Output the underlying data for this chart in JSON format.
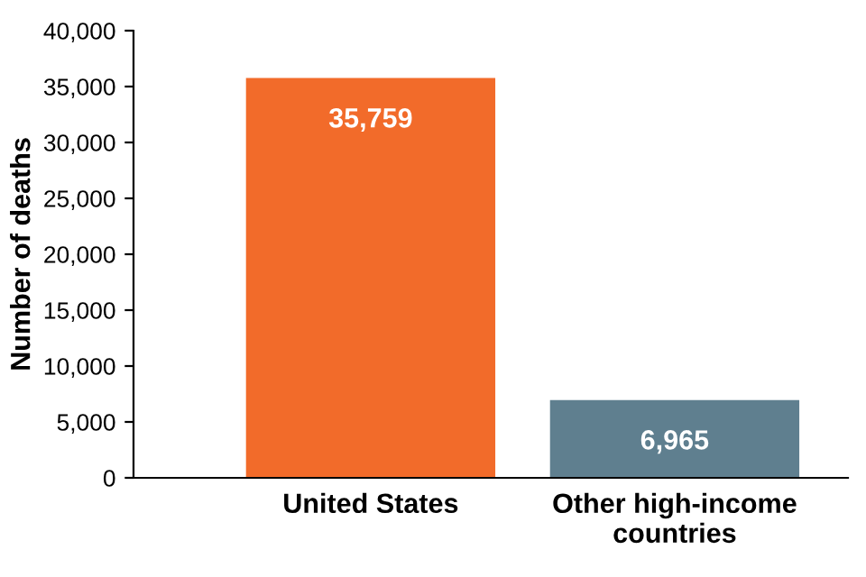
{
  "chart_data": {
    "type": "bar",
    "ylabel": "Number of deaths",
    "categories": [
      "United States",
      "Other high-income countries"
    ],
    "values": [
      35759,
      6965
    ],
    "colors": [
      "#f26b2a",
      "#5f7f8f"
    ],
    "value_labels": [
      "35,759",
      "6,965"
    ],
    "ylim": [
      0,
      40000
    ],
    "yticks": [
      {
        "value": 0,
        "label": "0"
      },
      {
        "value": 5000,
        "label": "5,000"
      },
      {
        "value": 10000,
        "label": "10,000"
      },
      {
        "value": 15000,
        "label": "15,000"
      },
      {
        "value": 20000,
        "label": "20,000"
      },
      {
        "value": 25000,
        "label": "25,000"
      },
      {
        "value": 30000,
        "label": "30,000"
      },
      {
        "value": 35000,
        "label": "35,000"
      },
      {
        "value": 40000,
        "label": "40,000"
      }
    ],
    "grid": false
  }
}
